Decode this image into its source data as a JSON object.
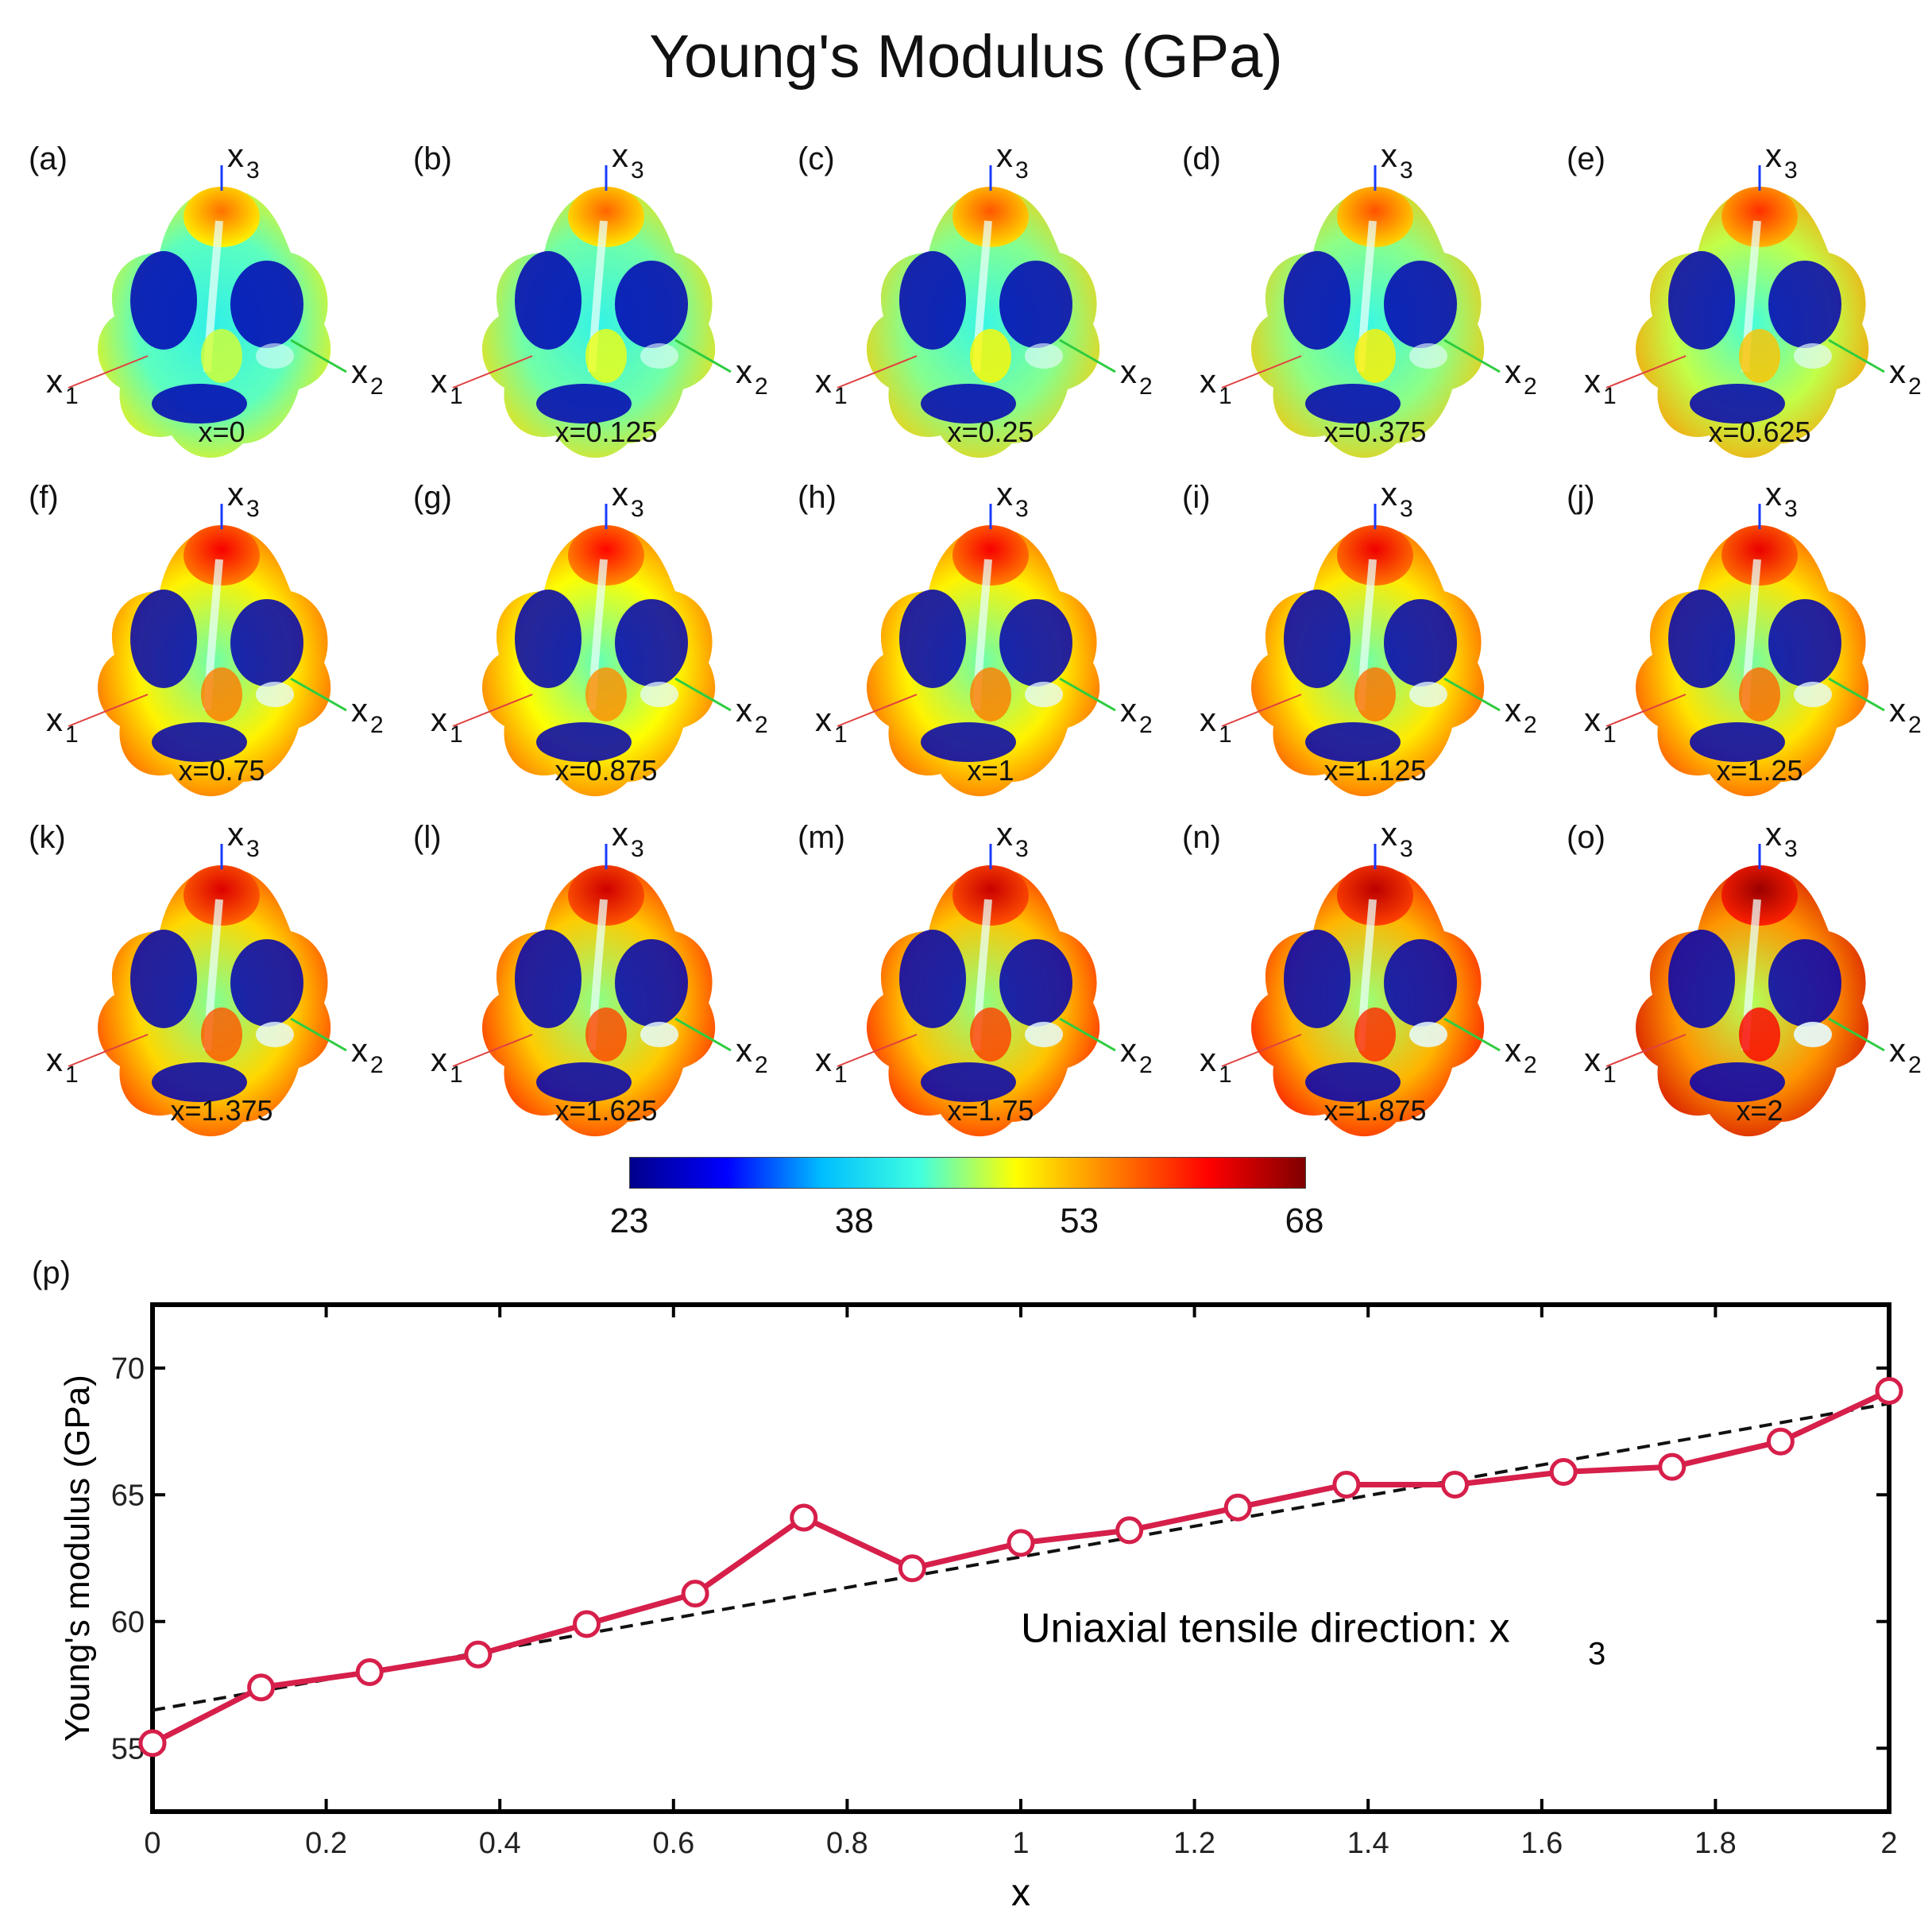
{
  "figure_title": "Young's Modulus (GPa)",
  "colors": {
    "jet": [
      "#00008b",
      "#0000ff",
      "#00bfff",
      "#40ffe0",
      "#ffff00",
      "#ff7f00",
      "#ff0000",
      "#800000"
    ],
    "series_line": "#d61f4a",
    "trend_line": "#111111"
  },
  "axes_labels": {
    "x": "x",
    "x_sub": "1",
    "y": "x",
    "y_sub": "2",
    "z": "x",
    "z_sub": "3"
  },
  "panels": [
    {
      "letter": "(a)",
      "caption": "x=0",
      "level": 0.1
    },
    {
      "letter": "(b)",
      "caption": "x=0.125",
      "level": 0.15
    },
    {
      "letter": "(c)",
      "caption": "x=0.25",
      "level": 0.2
    },
    {
      "letter": "(d)",
      "caption": "x=0.375",
      "level": 0.22
    },
    {
      "letter": "(e)",
      "caption": "x=0.625",
      "level": 0.35
    },
    {
      "letter": "(f)",
      "caption": "x=0.75",
      "level": 0.55
    },
    {
      "letter": "(g)",
      "caption": "x=0.875",
      "level": 0.5
    },
    {
      "letter": "(h)",
      "caption": "x=1",
      "level": 0.55
    },
    {
      "letter": "(i)",
      "caption": "x=1.125",
      "level": 0.58
    },
    {
      "letter": "(j)",
      "caption": "x=1.25",
      "level": 0.6
    },
    {
      "letter": "(k)",
      "caption": "x=1.375",
      "level": 0.65
    },
    {
      "letter": "(l)",
      "caption": "x=1.625",
      "level": 0.7
    },
    {
      "letter": "(m)",
      "caption": "x=1.75",
      "level": 0.72
    },
    {
      "letter": "(n)",
      "caption": "x=1.875",
      "level": 0.78
    },
    {
      "letter": "(o)",
      "caption": "x=2",
      "level": 0.9
    }
  ],
  "colorbar": {
    "min": 23,
    "max": 68,
    "ticks": [
      "23",
      "38",
      "53",
      "68"
    ]
  },
  "chart_data": {
    "type": "line",
    "panel_letter": "(p)",
    "xlabel": "x",
    "ylabel": "Young's modulus (GPa)",
    "xlim": [
      0,
      2
    ],
    "ylim": [
      52.5,
      72.5
    ],
    "xticks": [
      0,
      0.2,
      0.4,
      0.6,
      0.8,
      1,
      1.2,
      1.4,
      1.6,
      1.8,
      2
    ],
    "xtick_labels": [
      "0",
      "0.2",
      "0.4",
      "0.6",
      "0.8",
      "1",
      "1.2",
      "1.4",
      "1.6",
      "1.8",
      "2"
    ],
    "yticks": [
      55,
      60,
      65,
      70
    ],
    "ytick_labels": [
      "55",
      "60",
      "65",
      "70"
    ],
    "series": [
      {
        "name": "Young's modulus",
        "marker": "circle",
        "x": [
          0,
          0.125,
          0.25,
          0.375,
          0.5,
          0.625,
          0.75,
          0.875,
          1,
          1.125,
          1.25,
          1.375,
          1.5,
          1.625,
          1.75,
          1.875,
          2
        ],
        "values": [
          55.2,
          57.4,
          58.0,
          58.7,
          59.9,
          61.1,
          64.1,
          62.1,
          63.1,
          63.6,
          64.5,
          65.4,
          65.4,
          65.9,
          66.1,
          67.1,
          69.1
        ]
      }
    ],
    "trend_line": {
      "name": "linear fit",
      "x": [
        0,
        2
      ],
      "values": [
        56.5,
        68.6
      ]
    },
    "annotation": {
      "text": "Uniaxial tensile direction: x",
      "sub": "3",
      "x": 1.0,
      "y": 59.2
    }
  }
}
